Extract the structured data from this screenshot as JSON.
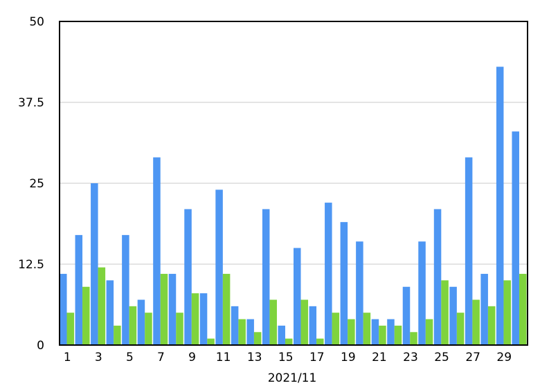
{
  "chart_data": {
    "type": "bar",
    "xlabel": "2021/11",
    "ylabel": "",
    "ylim": [
      0,
      50
    ],
    "y_ticks": [
      "0",
      "12.5",
      "25",
      "37.5",
      "50"
    ],
    "y_tick_values": [
      0,
      12.5,
      25,
      37.5,
      50
    ],
    "x_tick_labels": [
      "1",
      "3",
      "5",
      "7",
      "9",
      "11",
      "13",
      "15",
      "17",
      "19",
      "21",
      "23",
      "25",
      "27",
      "29"
    ],
    "grid": "horizontal",
    "legend": "none",
    "categories": [
      1,
      2,
      3,
      4,
      5,
      6,
      7,
      8,
      9,
      10,
      11,
      12,
      13,
      14,
      15,
      16,
      17,
      18,
      19,
      20,
      21,
      22,
      23,
      24,
      25,
      26,
      27,
      28,
      29,
      30
    ],
    "series": [
      {
        "color": "#4d96f3",
        "values": [
          11,
          17,
          25,
          10,
          17,
          7,
          29,
          11,
          21,
          8,
          24,
          6,
          4,
          21,
          3,
          15,
          6,
          22,
          19,
          16,
          4,
          4,
          9,
          16,
          21,
          9,
          29,
          11,
          43,
          33
        ]
      },
      {
        "color": "#7fd33d",
        "values": [
          5,
          9,
          12,
          3,
          6,
          5,
          11,
          5,
          8,
          1,
          11,
          4,
          2,
          7,
          1,
          7,
          1,
          5,
          4,
          5,
          3,
          3,
          2,
          4,
          10,
          5,
          7,
          6,
          10,
          11
        ]
      }
    ]
  }
}
